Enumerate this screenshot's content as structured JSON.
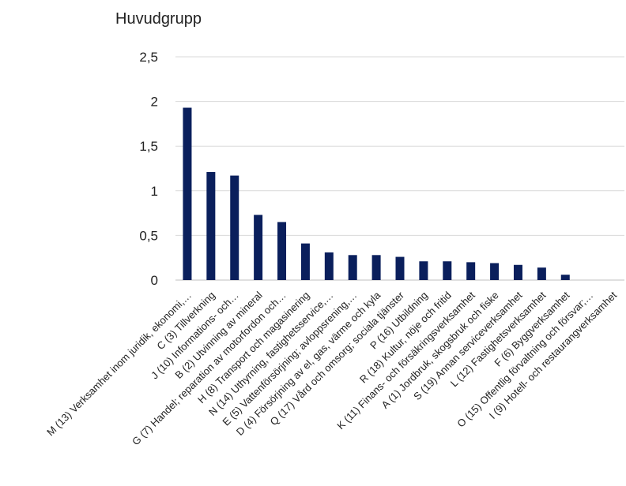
{
  "chart_data": {
    "type": "bar",
    "title": "Huvudgrupp",
    "xlabel": "",
    "ylabel": "",
    "ylim": [
      0,
      2.5
    ],
    "yticks": [
      0,
      0.5,
      1,
      1.5,
      2,
      2.5
    ],
    "ytick_labels": [
      "0",
      "0,5",
      "1",
      "1,5",
      "2",
      "2,5"
    ],
    "grid": true,
    "bar_color": "#0a1f5c",
    "categories": [
      "M (13) Verksamhet inom juridik, ekonomi,…",
      "C (3) Tillverkning",
      "J (10) Informations- och…",
      "B (2) Utvinning av mineral",
      "G (7) Handel; reparation av motorfordon och…",
      "H (8) Transport och magasinering",
      "N (14) Uthyrning, fastighetsservice,…",
      "E (5) Vattenförsörjning; avloppsrening,…",
      "D (4) Försörjning av el, gas, värme och kyla",
      "Q (17) Vård och omsorg; sociala tjänster",
      "P (16) Utbildning",
      "R (18) Kultur, nöje och fritid",
      "K (11) Finans- och försäkringsverksamhet",
      "A (1) Jordbruk, skogsbruk och fiske",
      "S (19) Annan serviceverksamhet",
      "L (12) Fastighetsverksamhet",
      "F (6) Byggverksamhet",
      "O (15) Offentlig förvaltning och försvar;…",
      "I (9) Hotell- och restaurangverksamhet"
    ],
    "values": [
      1.93,
      1.21,
      1.17,
      0.73,
      0.65,
      0.41,
      0.31,
      0.28,
      0.28,
      0.26,
      0.21,
      0.21,
      0.2,
      0.19,
      0.17,
      0.14,
      0.06,
      0.0,
      0.0
    ]
  }
}
